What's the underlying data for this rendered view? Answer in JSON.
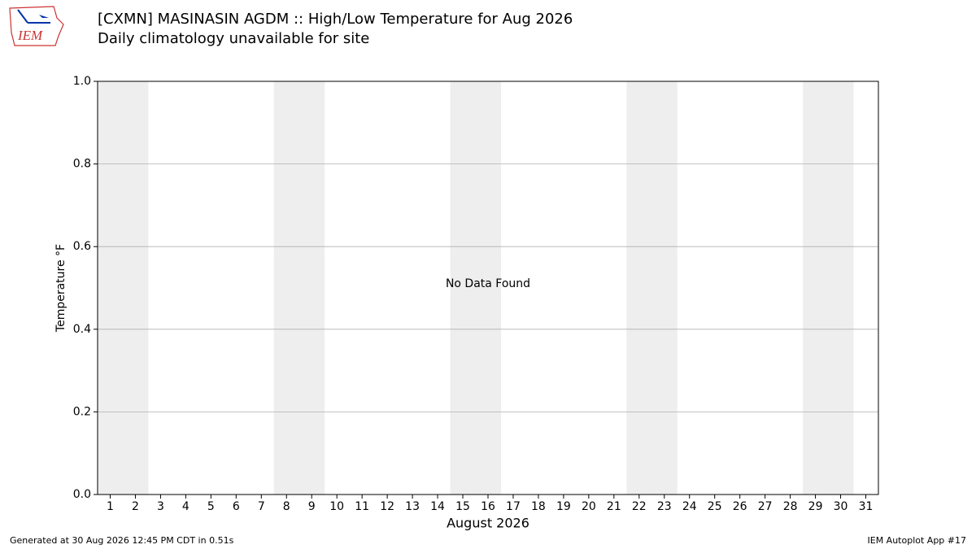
{
  "logo": {
    "text": "IEM"
  },
  "chart_data": {
    "type": "line",
    "title": "[CXMN] MASINASIN AGDM :: High/Low Temperature for Aug 2026",
    "subtitle": "Daily climatology unavailable for site",
    "y_label": "Temperature °F",
    "x_label": "August 2026",
    "annotation": "No Data Found",
    "categories": [
      "1",
      "2",
      "3",
      "4",
      "5",
      "6",
      "7",
      "8",
      "9",
      "10",
      "11",
      "12",
      "13",
      "14",
      "15",
      "16",
      "17",
      "18",
      "19",
      "20",
      "21",
      "22",
      "23",
      "24",
      "25",
      "26",
      "27",
      "28",
      "29",
      "30",
      "31"
    ],
    "weekend_days": [
      "1",
      "2",
      "8",
      "9",
      "15",
      "16",
      "22",
      "23",
      "29",
      "30"
    ],
    "weekend_color": "#eeeeee",
    "ylim": [
      0,
      1
    ],
    "yticks": [
      {
        "value": 0,
        "label": "0.0"
      },
      0.2,
      0.4,
      0.6,
      0.8,
      {
        "value": 1,
        "label": "1.0"
      }
    ],
    "grid": true
  },
  "footer": {
    "left": "Generated at 30 Aug 2026 12:45 PM CDT in 0.51s",
    "right": "IEM Autoplot App #17"
  }
}
